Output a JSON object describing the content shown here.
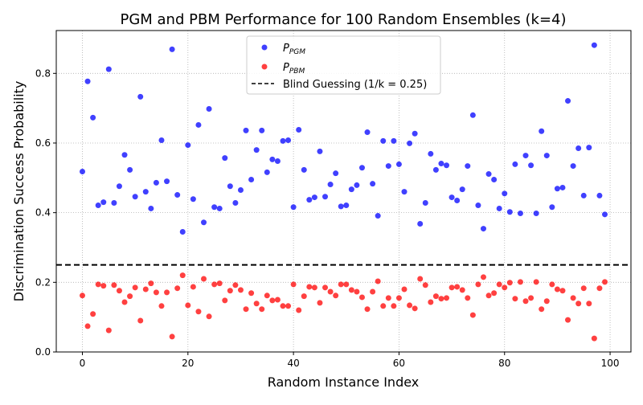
{
  "chart_data": {
    "type": "scatter",
    "title": "PGM and PBM Performance for 100 Random Ensembles (k=4)",
    "xlabel": "Random Instance Index",
    "ylabel": "Discrimination Success Probability",
    "xlim": [
      -4.95,
      103.95
    ],
    "ylim": [
      0,
      0.923
    ],
    "xticks": [
      0,
      20,
      40,
      60,
      80,
      100
    ],
    "yticks": [
      0.0,
      0.2,
      0.4,
      0.6,
      0.8
    ],
    "grid": true,
    "legend_position": "top-center",
    "series": [
      {
        "name": "P_PGM",
        "label_main": "P",
        "label_sub": "PGM",
        "color": "#0000ff",
        "x_start": 0,
        "values": [
          0.518,
          0.777,
          0.673,
          0.421,
          0.43,
          0.812,
          0.428,
          0.476,
          0.566,
          0.523,
          0.446,
          0.733,
          0.46,
          0.412,
          0.486,
          0.608,
          0.49,
          0.869,
          0.451,
          0.345,
          0.594,
          0.439,
          0.652,
          0.372,
          0.698,
          0.416,
          0.412,
          0.557,
          0.476,
          0.428,
          0.465,
          0.636,
          0.495,
          0.58,
          0.636,
          0.516,
          0.553,
          0.548,
          0.606,
          0.608,
          0.416,
          0.638,
          0.523,
          0.437,
          0.444,
          0.576,
          0.446,
          0.481,
          0.513,
          0.418,
          0.421,
          0.467,
          0.479,
          0.529,
          0.631,
          0.483,
          0.391,
          0.606,
          0.534,
          0.606,
          0.539,
          0.46,
          0.599,
          0.627,
          0.368,
          0.428,
          0.569,
          0.523,
          0.541,
          0.536,
          0.444,
          0.435,
          0.467,
          0.534,
          0.68,
          0.421,
          0.354,
          0.511,
          0.495,
          0.412,
          0.455,
          0.402,
          0.539,
          0.398,
          0.564,
          0.536,
          0.398,
          0.634,
          0.564,
          0.416,
          0.469,
          0.472,
          0.721,
          0.534,
          0.585,
          0.449,
          0.587,
          0.881,
          0.449,
          0.395
        ]
      },
      {
        "name": "P_PBM",
        "label_main": "P",
        "label_sub": "PBM",
        "color": "#ff0000",
        "x_start": 0,
        "values": [
          0.162,
          0.074,
          0.109,
          0.194,
          0.19,
          0.062,
          0.192,
          0.176,
          0.143,
          0.16,
          0.185,
          0.09,
          0.18,
          0.197,
          0.171,
          0.132,
          0.171,
          0.044,
          0.183,
          0.22,
          0.134,
          0.187,
          0.116,
          0.21,
          0.102,
          0.194,
          0.197,
          0.148,
          0.176,
          0.192,
          0.178,
          0.123,
          0.169,
          0.139,
          0.123,
          0.162,
          0.148,
          0.15,
          0.132,
          0.132,
          0.194,
          0.12,
          0.16,
          0.187,
          0.185,
          0.141,
          0.185,
          0.173,
          0.162,
          0.194,
          0.194,
          0.178,
          0.173,
          0.157,
          0.123,
          0.173,
          0.203,
          0.132,
          0.155,
          0.132,
          0.155,
          0.18,
          0.134,
          0.125,
          0.21,
          0.192,
          0.143,
          0.16,
          0.153,
          0.155,
          0.185,
          0.187,
          0.178,
          0.155,
          0.106,
          0.194,
          0.215,
          0.162,
          0.169,
          0.194,
          0.185,
          0.199,
          0.153,
          0.201,
          0.146,
          0.155,
          0.201,
          0.123,
          0.146,
          0.194,
          0.18,
          0.176,
          0.092,
          0.155,
          0.139,
          0.183,
          0.139,
          0.039,
          0.183,
          0.201
        ]
      }
    ],
    "reference_line": {
      "label": "Blind Guessing (1/k = 0.25)",
      "y": 0.25,
      "style": "dashed",
      "color": "#000000"
    }
  }
}
